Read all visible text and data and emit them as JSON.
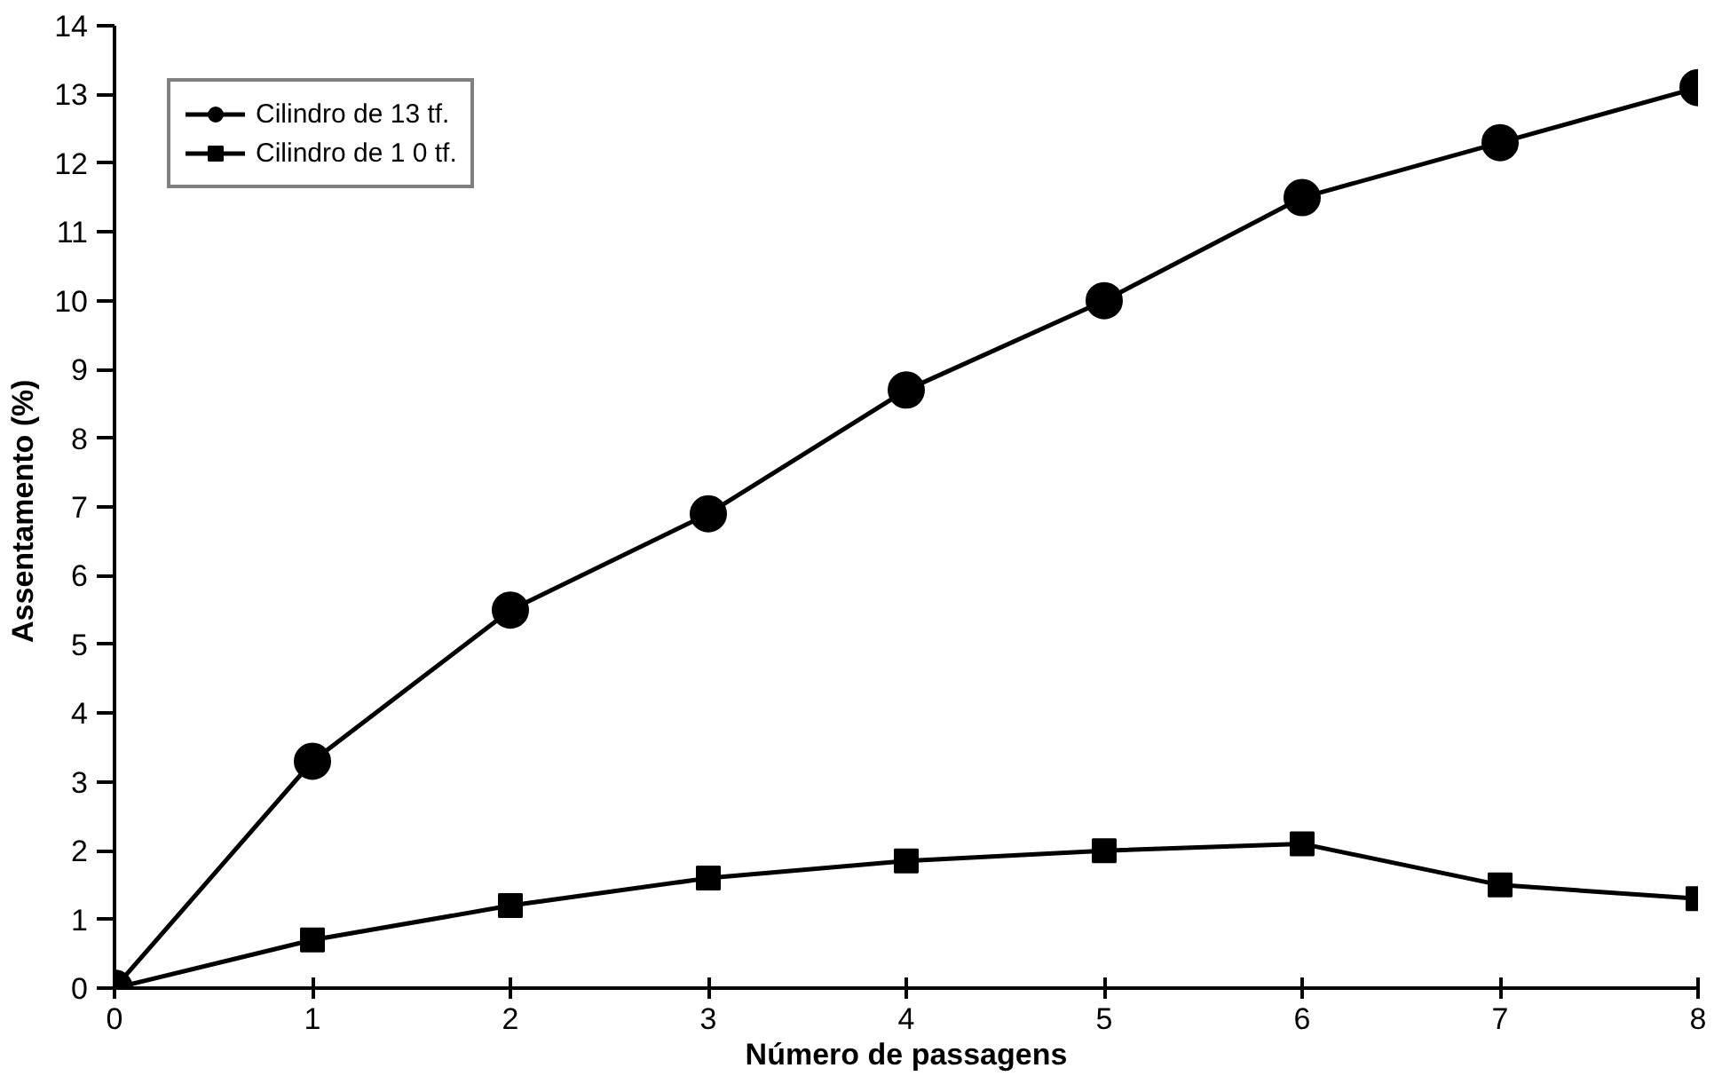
{
  "chart_data": {
    "type": "line",
    "xlabel": "Número de passagens",
    "ylabel": "Assentamento  (%)",
    "x": [
      0,
      1,
      2,
      3,
      4,
      5,
      6,
      7,
      8
    ],
    "series": [
      {
        "name": "Cilindro de 13 tf.",
        "color": "#000000",
        "marker": "circle",
        "values": [
          0,
          3.3,
          5.5,
          6.9,
          8.7,
          10.0,
          11.5,
          12.3,
          13.1
        ]
      },
      {
        "name": "Cilindro de 1 0 tf.",
        "color": "#000000",
        "marker": "square",
        "values": [
          0,
          0.7,
          1.2,
          1.6,
          1.85,
          2.0,
          2.1,
          1.5,
          1.3
        ]
      }
    ],
    "xlim": [
      0,
      8
    ],
    "ylim": [
      0,
      14
    ],
    "xticks": [
      0,
      1,
      2,
      3,
      4,
      5,
      6,
      7,
      8
    ],
    "yticks": [
      0,
      1,
      2,
      3,
      4,
      5,
      6,
      7,
      8,
      9,
      10,
      11,
      12,
      13,
      14
    ],
    "grid": false,
    "legend": "top left",
    "line_style": "solid"
  }
}
